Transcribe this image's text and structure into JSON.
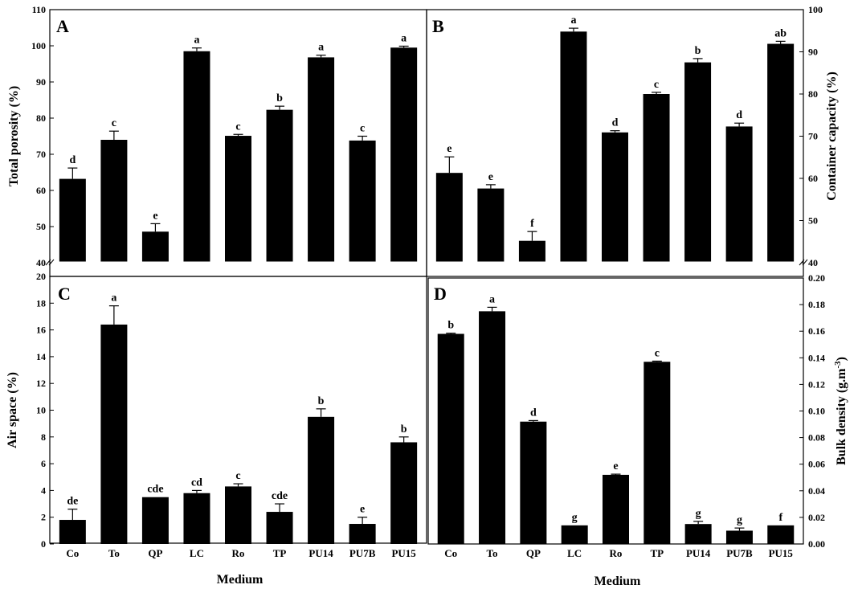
{
  "chart_data": [
    {
      "type": "bar",
      "panel": "A",
      "categories": [
        "Co",
        "To",
        "QP",
        "LC",
        "Ro",
        "TP",
        "PU14",
        "PU7B",
        "PU15"
      ],
      "values": [
        63.2,
        74.0,
        48.6,
        98.5,
        75.1,
        82.3,
        96.8,
        73.8,
        99.5
      ],
      "errors": [
        3.0,
        2.4,
        2.2,
        0.9,
        0.4,
        1.0,
        0.6,
        1.2,
        0.4
      ],
      "letters": [
        "d",
        "c",
        "e",
        "a",
        "c",
        "b",
        "a",
        "c",
        "a"
      ],
      "ylabel": "Total porosity (%)",
      "ylim": [
        40,
        110
      ],
      "yticks": [
        40,
        50,
        60,
        70,
        80,
        90,
        100,
        110
      ],
      "y_axis_side": "left",
      "axis_break": true
    },
    {
      "type": "bar",
      "panel": "B",
      "categories": [
        "Co",
        "To",
        "QP",
        "LC",
        "Ro",
        "TP",
        "PU14",
        "PU7B",
        "PU15"
      ],
      "values": [
        61.3,
        57.6,
        45.2,
        94.8,
        70.9,
        80.0,
        87.5,
        72.3,
        91.9
      ],
      "errors": [
        3.8,
        0.9,
        2.2,
        0.8,
        0.4,
        0.4,
        0.9,
        0.8,
        0.6
      ],
      "letters": [
        "e",
        "e",
        "f",
        "a",
        "d",
        "c",
        "b",
        "d",
        "ab"
      ],
      "ylabel": "Container capacity (%)",
      "ylim": [
        40,
        100
      ],
      "yticks": [
        40,
        50,
        60,
        70,
        80,
        90,
        100
      ],
      "y_axis_side": "right",
      "axis_break": true
    },
    {
      "type": "bar",
      "panel": "C",
      "categories": [
        "Co",
        "To",
        "QP",
        "LC",
        "Ro",
        "TP",
        "PU14",
        "PU7B",
        "PU15"
      ],
      "values": [
        1.8,
        16.4,
        3.5,
        3.8,
        4.3,
        2.4,
        9.5,
        1.5,
        7.6
      ],
      "errors": [
        0.8,
        1.4,
        0.0,
        0.2,
        0.2,
        0.6,
        0.6,
        0.5,
        0.4
      ],
      "letters": [
        "de",
        "a",
        "cde",
        "cd",
        "c",
        "cde",
        "b",
        "e",
        "b"
      ],
      "ylabel": "Air space (%)",
      "xlabel": "Medium",
      "ylim": [
        0,
        20
      ],
      "yticks": [
        0,
        2,
        4,
        6,
        8,
        10,
        12,
        14,
        16,
        18,
        20
      ],
      "y_axis_side": "left"
    },
    {
      "type": "bar",
      "panel": "D",
      "categories": [
        "Co",
        "To",
        "QP",
        "LC",
        "Ro",
        "TP",
        "PU14",
        "PU7B",
        "PU15"
      ],
      "values": [
        0.158,
        0.175,
        0.092,
        0.014,
        0.052,
        0.137,
        0.015,
        0.01,
        0.014
      ],
      "errors": [
        0.0005,
        0.003,
        0.0008,
        0.0,
        0.0005,
        0.0005,
        0.002,
        0.002,
        0.0
      ],
      "letters": [
        "b",
        "a",
        "d",
        "g",
        "e",
        "c",
        "g",
        "g",
        "f"
      ],
      "ylabel": "Bulk density (g.m",
      "ylabel_sup": "-3",
      "ylabel_suffix": ")",
      "xlabel": "Medium",
      "ylim": [
        0,
        0.2
      ],
      "yticks": [
        "0.00",
        "0.02",
        "0.04",
        "0.06",
        "0.08",
        "0.10",
        "0.12",
        "0.14",
        "0.16",
        "0.18",
        "0.20"
      ],
      "y_axis_side": "right"
    }
  ],
  "panel_letters": [
    "A",
    "B",
    "C",
    "D"
  ]
}
